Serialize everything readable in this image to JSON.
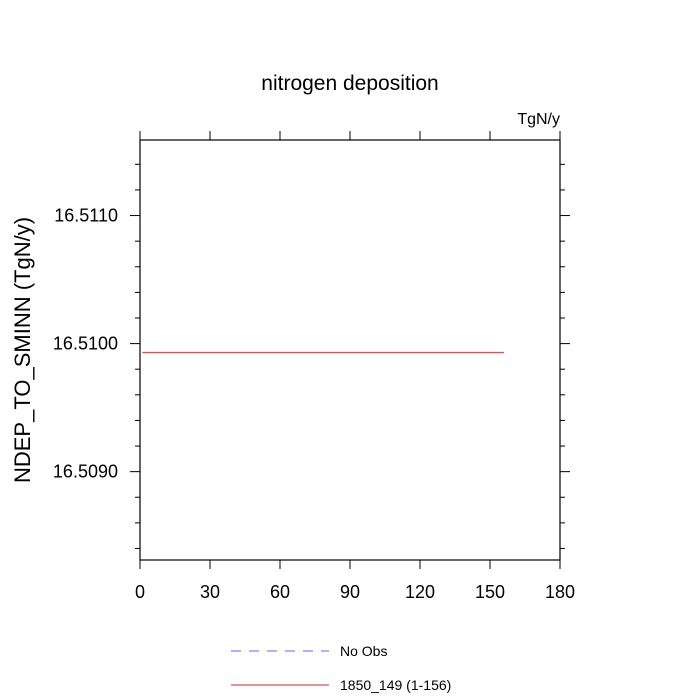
{
  "chart_data": {
    "type": "line",
    "title": "nitrogen deposition",
    "units_label": "TgN/y",
    "ylabel": "NDEP_TO_SMINN  (TgN/y)",
    "xlabel": "",
    "xlim": [
      0,
      180
    ],
    "ylim": [
      16.50831,
      16.51159
    ],
    "x_ticks": [
      0,
      30,
      60,
      90,
      120,
      150,
      180
    ],
    "x_tick_labels": [
      "0",
      "30",
      "60",
      "90",
      "120",
      "150",
      "180"
    ],
    "y_ticks": [
      16.509,
      16.51,
      16.511
    ],
    "y_tick_labels": [
      "16.5090",
      "16.5100",
      "16.5110"
    ],
    "grid": false,
    "legend_position": "bottom",
    "series": [
      {
        "name": "No Obs",
        "color": "#8080ff",
        "dash": "dashed",
        "x": [],
        "y": []
      },
      {
        "name": "1850_149 (1-156)",
        "color": "#e05050",
        "dash": "solid",
        "x": [
          1,
          156
        ],
        "y": [
          16.50993,
          16.50993
        ]
      }
    ]
  }
}
